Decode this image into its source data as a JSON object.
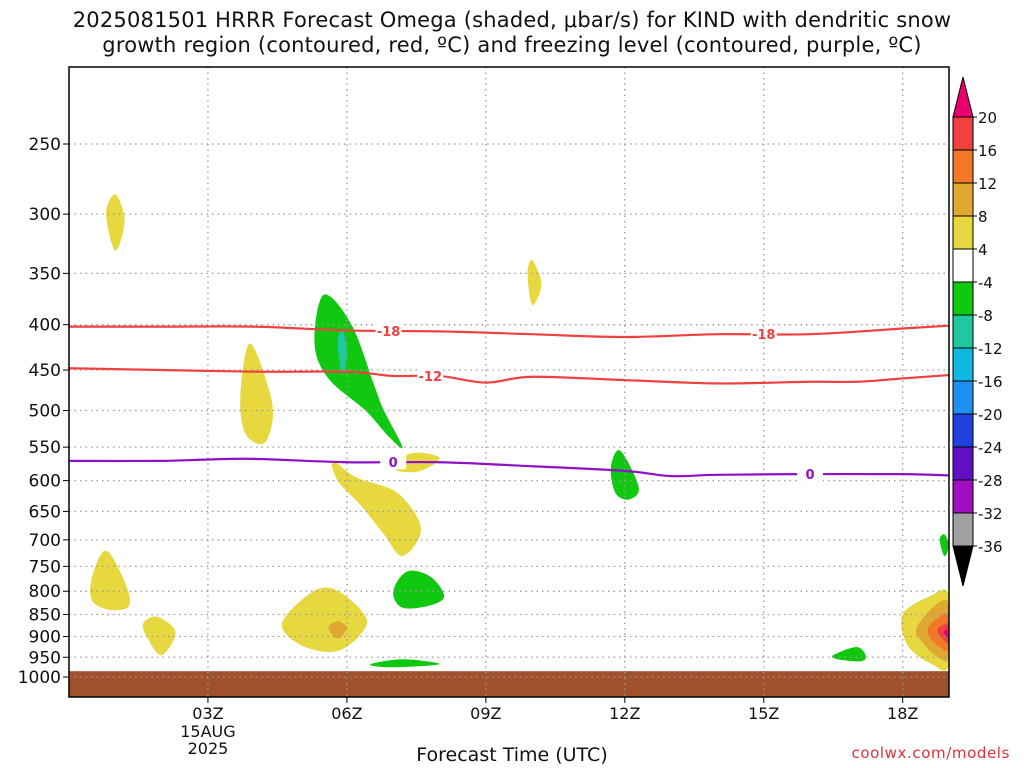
{
  "title": {
    "line1": "2025081501 HRRR Forecast Omega (shaded, μbar/s) for KIND with dendritic snow",
    "line2": "growth region (contoured, red, ºC) and freezing level (contoured, purple, ºC)"
  },
  "credit": "coolwx.com/models",
  "chart_data": {
    "type": "contour",
    "xlabel": "Forecast Time (UTC)",
    "ylabel": "",
    "x_ticks": [
      {
        "label": "03Z",
        "hour": 3
      },
      {
        "label": "06Z",
        "hour": 6
      },
      {
        "label": "09Z",
        "hour": 9
      },
      {
        "label": "12Z",
        "hour": 12
      },
      {
        "label": "15Z",
        "hour": 15
      },
      {
        "label": "18Z",
        "hour": 18
      }
    ],
    "date_label": [
      "15AUG",
      "2025"
    ],
    "xlim": [
      0,
      19
    ],
    "y_scale": "log-pressure",
    "ylim_hpa": [
      1000,
      200
    ],
    "y_ticks": [
      250,
      300,
      350,
      400,
      450,
      500,
      550,
      600,
      650,
      700,
      750,
      800,
      850,
      900,
      950,
      1000
    ],
    "grid": true,
    "colorbar": {
      "position": "right",
      "labels": [
        "20",
        "16",
        "12",
        "8",
        "4",
        "-4",
        "-8",
        "-12",
        "-16",
        "-20",
        "-24",
        "-28",
        "-32",
        "-36"
      ],
      "colors": [
        "#e8006e",
        "#f04040",
        "#f07828",
        "#e0a830",
        "#e8d840",
        "#ffffff",
        "#10c810",
        "#20c8a0",
        "#10b8e0",
        "#2090f0",
        "#2040e0",
        "#6010c0",
        "#a010c0",
        "#a0a0a0",
        "#000000"
      ]
    },
    "contours": [
      {
        "name": "-18",
        "color": "#f04040",
        "points": [
          [
            0,
            402
          ],
          [
            2,
            402
          ],
          [
            4,
            402
          ],
          [
            6,
            406
          ],
          [
            8,
            407
          ],
          [
            10,
            410
          ],
          [
            12,
            413
          ],
          [
            14,
            410
          ],
          [
            16,
            410
          ],
          [
            18,
            404
          ],
          [
            19,
            401
          ]
        ],
        "labels": [
          {
            "text": "-18",
            "hour": 6.9
          },
          {
            "text": "-18",
            "hour": 15
          }
        ]
      },
      {
        "name": "-12",
        "color": "#f04040",
        "points": [
          [
            0,
            448
          ],
          [
            2,
            450
          ],
          [
            4,
            452
          ],
          [
            6,
            452
          ],
          [
            7,
            457
          ],
          [
            8,
            457
          ],
          [
            9,
            465
          ],
          [
            10,
            458
          ],
          [
            12,
            462
          ],
          [
            14,
            466
          ],
          [
            16,
            464
          ],
          [
            17,
            464
          ],
          [
            18,
            460
          ],
          [
            19,
            456
          ]
        ],
        "labels": [
          {
            "text": "-12",
            "hour": 7.8
          }
        ]
      },
      {
        "name": "0",
        "color": "#9010c8",
        "points": [
          [
            0,
            570
          ],
          [
            2,
            570
          ],
          [
            3,
            568
          ],
          [
            4,
            567
          ],
          [
            6,
            572
          ],
          [
            8,
            572
          ],
          [
            10,
            578
          ],
          [
            12,
            585
          ],
          [
            13,
            593
          ],
          [
            14,
            591
          ],
          [
            16,
            590
          ],
          [
            18,
            590
          ],
          [
            19,
            592
          ]
        ],
        "labels": [
          {
            "text": "0",
            "hour": 7
          },
          {
            "text": "0",
            "hour": 16
          }
        ]
      }
    ],
    "omega_blobs": [
      {
        "value": 4,
        "color": "#e8d840",
        "poly": [
          [
            0.8,
            300
          ],
          [
            1.0,
            285
          ],
          [
            1.2,
            305
          ],
          [
            1.0,
            330
          ]
        ]
      },
      {
        "value": 4,
        "color": "#e8d840",
        "poly": [
          [
            9.9,
            350
          ],
          [
            10.0,
            338
          ],
          [
            10.2,
            360
          ],
          [
            10.0,
            380
          ]
        ]
      },
      {
        "value": 4,
        "color": "#e8d840",
        "poly": [
          [
            3.7,
            480
          ],
          [
            3.9,
            420
          ],
          [
            4.3,
            470
          ],
          [
            4.4,
            510
          ],
          [
            4.2,
            545
          ],
          [
            3.8,
            530
          ]
        ]
      },
      {
        "value": 4,
        "color": "#e8d840",
        "poly": [
          [
            5.7,
            570
          ],
          [
            6.2,
            595
          ],
          [
            7.1,
            620
          ],
          [
            7.6,
            680
          ],
          [
            7.2,
            730
          ],
          [
            6.8,
            690
          ],
          [
            6.3,
            640
          ],
          [
            5.8,
            600
          ]
        ]
      },
      {
        "value": 4,
        "color": "#e8d840",
        "poly": [
          [
            7.0,
            570
          ],
          [
            7.5,
            558
          ],
          [
            8.0,
            566
          ],
          [
            7.6,
            585
          ],
          [
            7.1,
            585
          ]
        ]
      },
      {
        "value": 4,
        "color": "#e8d840",
        "poly": [
          [
            0.5,
            770
          ],
          [
            0.8,
            720
          ],
          [
            1.2,
            780
          ],
          [
            1.3,
            830
          ],
          [
            0.9,
            840
          ],
          [
            0.5,
            820
          ]
        ]
      },
      {
        "value": 4,
        "color": "#e8d840",
        "poly": [
          [
            1.6,
            870
          ],
          [
            1.9,
            855
          ],
          [
            2.3,
            890
          ],
          [
            2.0,
            945
          ],
          [
            1.7,
            905
          ]
        ]
      },
      {
        "value": 4,
        "color": "#e8d840",
        "poly": [
          [
            4.6,
            870
          ],
          [
            5.2,
            805
          ],
          [
            5.7,
            795
          ],
          [
            6.3,
            840
          ],
          [
            6.4,
            880
          ],
          [
            5.8,
            935
          ],
          [
            5.0,
            920
          ]
        ]
      },
      {
        "value": 8,
        "color": "#e0a830",
        "poly": [
          [
            5.6,
            880
          ],
          [
            5.8,
            865
          ],
          [
            6.0,
            880
          ],
          [
            5.8,
            905
          ]
        ]
      },
      {
        "value": -4,
        "color": "#10c810",
        "poly": [
          [
            5.3,
            420
          ],
          [
            5.5,
            370
          ],
          [
            6.1,
            400
          ],
          [
            6.6,
            470
          ],
          [
            6.8,
            500
          ],
          [
            7.2,
            550
          ],
          [
            6.9,
            535
          ],
          [
            6.4,
            500
          ],
          [
            5.6,
            460
          ]
        ]
      },
      {
        "value": -8,
        "color": "#20c8a0",
        "poly": [
          [
            5.8,
            420
          ],
          [
            5.9,
            405
          ],
          [
            6.0,
            430
          ],
          [
            5.9,
            455
          ]
        ]
      },
      {
        "value": -4,
        "color": "#10c810",
        "poly": [
          [
            7.0,
            800
          ],
          [
            7.3,
            760
          ],
          [
            7.8,
            770
          ],
          [
            8.1,
            810
          ],
          [
            7.8,
            830
          ],
          [
            7.2,
            835
          ]
        ]
      },
      {
        "value": -4,
        "color": "#10c810",
        "poly": [
          [
            11.7,
            580
          ],
          [
            11.9,
            555
          ],
          [
            12.3,
            610
          ],
          [
            12.1,
            630
          ],
          [
            11.8,
            620
          ]
        ]
      },
      {
        "value": -4,
        "color": "#10c810",
        "poly": [
          [
            6.5,
            968
          ],
          [
            7.2,
            955
          ],
          [
            8.0,
            967
          ],
          [
            7.0,
            975
          ]
        ]
      },
      {
        "value": -4,
        "color": "#10c810",
        "poly": [
          [
            16.5,
            945
          ],
          [
            17.0,
            925
          ],
          [
            17.2,
            945
          ],
          [
            17.1,
            960
          ],
          [
            16.6,
            955
          ]
        ]
      },
      {
        "value": -4,
        "color": "#10c810",
        "poly": [
          [
            18.8,
            700
          ],
          [
            18.9,
            690
          ],
          [
            19.0,
            710
          ],
          [
            18.9,
            730
          ]
        ]
      },
      {
        "value": 4,
        "color": "#e8d840",
        "poly": [
          [
            18.0,
            850
          ],
          [
            18.6,
            810
          ],
          [
            19.0,
            808
          ],
          [
            19.0,
            970
          ],
          [
            18.6,
            965
          ],
          [
            18.1,
            920
          ]
        ]
      },
      {
        "value": 8,
        "color": "#e0a830",
        "poly": [
          [
            18.3,
            880
          ],
          [
            18.7,
            830
          ],
          [
            19.0,
            828
          ],
          [
            19.0,
            950
          ],
          [
            18.7,
            945
          ],
          [
            18.4,
            910
          ]
        ]
      },
      {
        "value": 12,
        "color": "#f07828",
        "poly": [
          [
            18.55,
            880
          ],
          [
            18.8,
            855
          ],
          [
            19.0,
            853
          ],
          [
            19.0,
            930
          ],
          [
            18.8,
            925
          ],
          [
            18.6,
            905
          ]
        ]
      },
      {
        "value": 16,
        "color": "#f04040",
        "poly": [
          [
            18.75,
            885
          ],
          [
            18.9,
            872
          ],
          [
            19.0,
            872
          ],
          [
            19.0,
            912
          ],
          [
            18.9,
            910
          ]
        ]
      },
      {
        "value": 20,
        "color": "#e8006e",
        "poly": [
          [
            18.88,
            890
          ],
          [
            18.95,
            884
          ],
          [
            19.0,
            884
          ],
          [
            19.0,
            900
          ],
          [
            18.95,
            900
          ]
        ]
      }
    ],
    "terrain": {
      "color": "#a0502a",
      "top_hpa": 985
    }
  }
}
